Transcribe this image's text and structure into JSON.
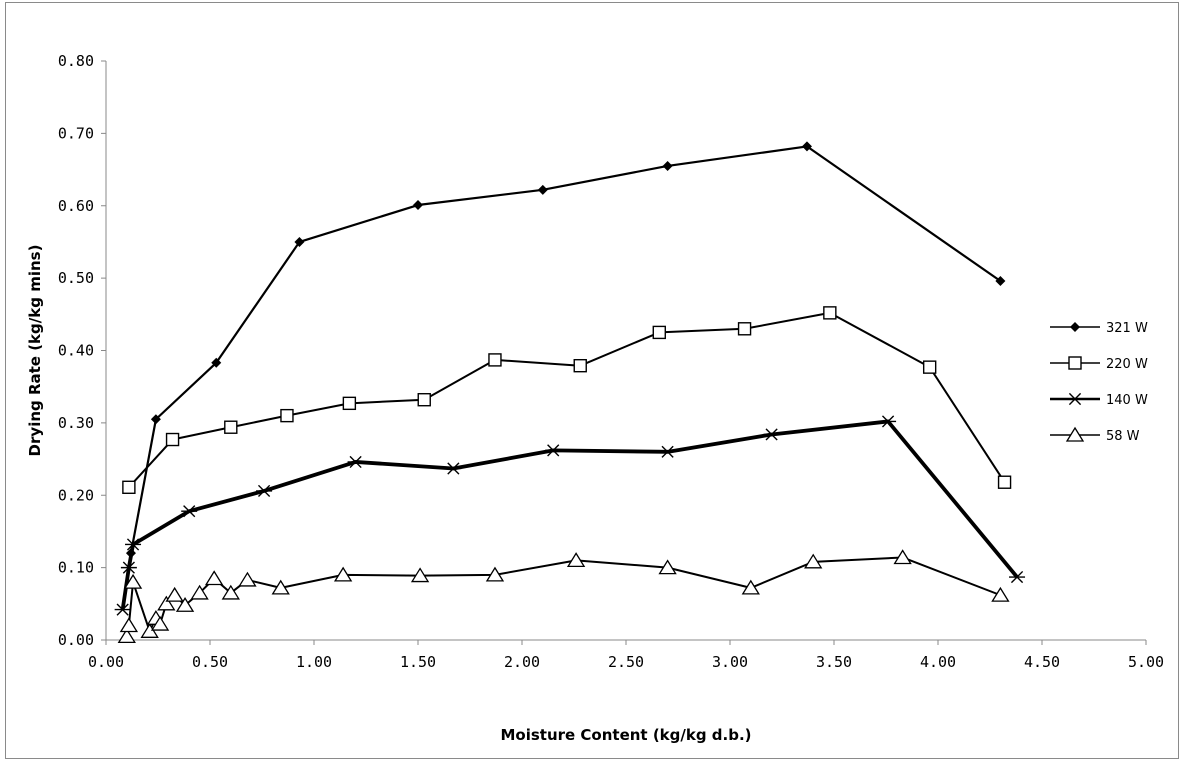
{
  "chart_data": {
    "type": "line",
    "title": "",
    "xlabel": "Moisture Content (kg/kg d.b.)",
    "ylabel": "Drying Rate  (kg/kg mins)",
    "xlim": [
      0,
      5
    ],
    "ylim": [
      0,
      0.8
    ],
    "x_ticks": [
      "0.00",
      "0.50",
      "1.00",
      "1.50",
      "2.00",
      "2.50",
      "3.00",
      "3.50",
      "4.00",
      "4.50",
      "5.00"
    ],
    "y_ticks": [
      "0.00",
      "0.10",
      "0.20",
      "0.30",
      "0.40",
      "0.50",
      "0.60",
      "0.70",
      "0.80"
    ],
    "grid": false,
    "legend_position": "right",
    "series": [
      {
        "name": "321 W",
        "marker": "diamond-filled",
        "line_color": "#000000",
        "points": [
          [
            0.12,
            0.12
          ],
          [
            0.24,
            0.305
          ],
          [
            0.53,
            0.383
          ],
          [
            0.93,
            0.55
          ],
          [
            1.5,
            0.601
          ],
          [
            2.1,
            0.622
          ],
          [
            2.7,
            0.655
          ],
          [
            3.37,
            0.682
          ],
          [
            4.3,
            0.496
          ]
        ]
      },
      {
        "name": "220 W",
        "marker": "square-open",
        "line_color": "#000000",
        "points": [
          [
            0.11,
            0.211
          ],
          [
            0.32,
            0.277
          ],
          [
            0.6,
            0.294
          ],
          [
            0.87,
            0.31
          ],
          [
            1.17,
            0.327
          ],
          [
            1.53,
            0.332
          ],
          [
            1.87,
            0.387
          ],
          [
            2.28,
            0.379
          ],
          [
            2.66,
            0.425
          ],
          [
            3.07,
            0.43
          ],
          [
            3.48,
            0.452
          ],
          [
            3.96,
            0.377
          ],
          [
            4.32,
            0.218
          ]
        ]
      },
      {
        "name": "140 W",
        "marker": "asterisk",
        "line_color": "#000000",
        "points": [
          [
            0.08,
            0.042
          ],
          [
            0.11,
            0.1
          ],
          [
            0.13,
            0.132
          ],
          [
            0.4,
            0.178
          ],
          [
            0.76,
            0.206
          ],
          [
            1.2,
            0.246
          ],
          [
            1.67,
            0.237
          ],
          [
            2.15,
            0.262
          ],
          [
            2.7,
            0.26
          ],
          [
            3.2,
            0.284
          ],
          [
            3.76,
            0.302
          ],
          [
            4.38,
            0.087
          ]
        ]
      },
      {
        "name": "58 W",
        "marker": "triangle-open",
        "line_color": "#000000",
        "points": [
          [
            0.1,
            0.005
          ],
          [
            0.11,
            0.02
          ],
          [
            0.13,
            0.08
          ],
          [
            0.21,
            0.012
          ],
          [
            0.24,
            0.03
          ],
          [
            0.26,
            0.022
          ],
          [
            0.29,
            0.05
          ],
          [
            0.33,
            0.062
          ],
          [
            0.38,
            0.048
          ],
          [
            0.45,
            0.065
          ],
          [
            0.52,
            0.085
          ],
          [
            0.6,
            0.065
          ],
          [
            0.68,
            0.083
          ],
          [
            0.84,
            0.072
          ],
          [
            1.14,
            0.09
          ],
          [
            1.51,
            0.089
          ],
          [
            1.87,
            0.09
          ],
          [
            2.26,
            0.11
          ],
          [
            2.7,
            0.1
          ],
          [
            3.1,
            0.072
          ],
          [
            3.4,
            0.108
          ],
          [
            3.83,
            0.114
          ],
          [
            4.3,
            0.062
          ]
        ]
      }
    ]
  }
}
